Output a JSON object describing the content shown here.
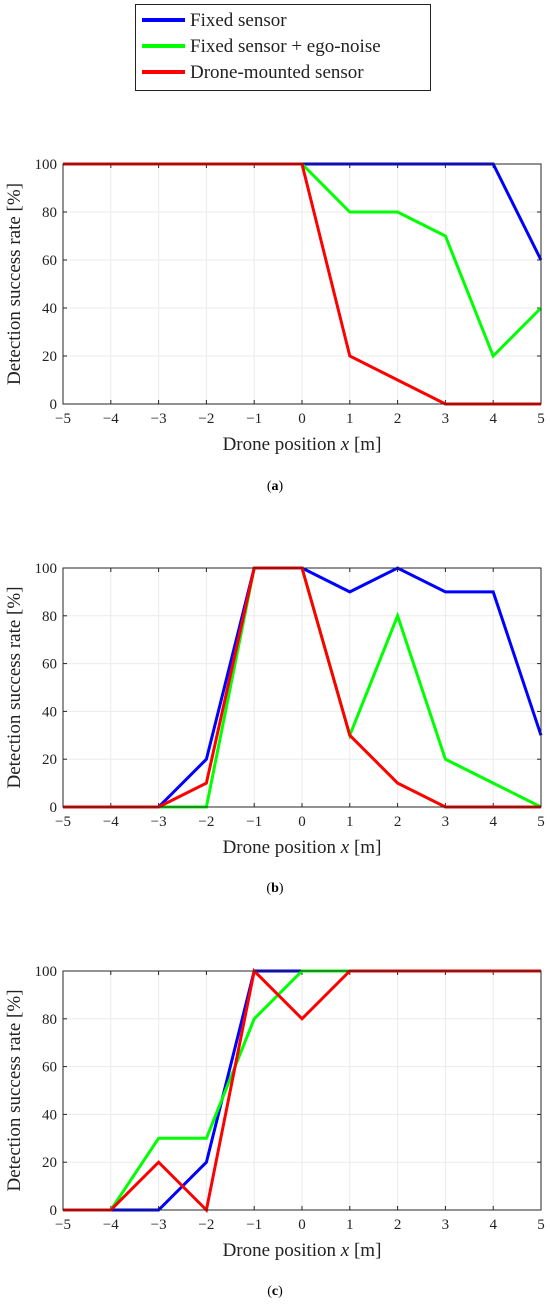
{
  "legend": {
    "entries": [
      {
        "label": "Fixed sensor",
        "color": "#0000ff"
      },
      {
        "label": "Fixed sensor + ego-noise",
        "color": "#00ff00"
      },
      {
        "label": "Drone-mounted sensor",
        "color": "#ff0000"
      }
    ]
  },
  "chart_data": [
    {
      "type": "line",
      "caption": "a",
      "xlabel": "Drone position x [m]",
      "ylabel": "Detection success rate [%]",
      "xlim": [
        -5,
        5
      ],
      "ylim": [
        0,
        100
      ],
      "xticks": [
        -5,
        -4,
        -3,
        -2,
        -1,
        0,
        1,
        2,
        3,
        4,
        5
      ],
      "yticks": [
        0,
        20,
        40,
        60,
        80,
        100
      ],
      "grid": true,
      "series": [
        {
          "name": "Fixed sensor",
          "color": "#0000ff",
          "x": [
            -5,
            -4,
            -3,
            -2,
            -1,
            0,
            1,
            2,
            3,
            4,
            5
          ],
          "y": [
            100,
            100,
            100,
            100,
            100,
            100,
            100,
            100,
            100,
            100,
            60
          ]
        },
        {
          "name": "Fixed sensor + ego-noise",
          "color": "#00ff00",
          "x": [
            -5,
            -4,
            -3,
            -2,
            -1,
            0,
            1,
            2,
            3,
            4,
            5
          ],
          "y": [
            100,
            100,
            100,
            100,
            100,
            100,
            80,
            80,
            70,
            20,
            40
          ]
        },
        {
          "name": "Drone-mounted sensor",
          "color": "#ff0000",
          "x": [
            -5,
            -4,
            -3,
            -2,
            -1,
            0,
            1,
            2,
            3,
            4,
            5
          ],
          "y": [
            100,
            100,
            100,
            100,
            100,
            100,
            20,
            10,
            0,
            0,
            0
          ]
        }
      ]
    },
    {
      "type": "line",
      "caption": "b",
      "xlabel": "Drone position x [m]",
      "ylabel": "Detection success rate [%]",
      "xlim": [
        -5,
        5
      ],
      "ylim": [
        0,
        100
      ],
      "xticks": [
        -5,
        -4,
        -3,
        -2,
        -1,
        0,
        1,
        2,
        3,
        4,
        5
      ],
      "yticks": [
        0,
        20,
        40,
        60,
        80,
        100
      ],
      "grid": true,
      "series": [
        {
          "name": "Fixed sensor",
          "color": "#0000ff",
          "x": [
            -5,
            -4,
            -3,
            -2,
            -1,
            0,
            1,
            2,
            3,
            4,
            5
          ],
          "y": [
            0,
            0,
            0,
            20,
            100,
            100,
            90,
            100,
            90,
            90,
            30
          ]
        },
        {
          "name": "Fixed sensor + ego-noise",
          "color": "#00ff00",
          "x": [
            -5,
            -4,
            -3,
            -2,
            -1,
            0,
            1,
            2,
            3,
            4,
            5
          ],
          "y": [
            0,
            0,
            0,
            0,
            100,
            100,
            30,
            80,
            20,
            10,
            0
          ]
        },
        {
          "name": "Drone-mounted sensor",
          "color": "#ff0000",
          "x": [
            -5,
            -4,
            -3,
            -2,
            -1,
            0,
            1,
            2,
            3,
            4,
            5
          ],
          "y": [
            0,
            0,
            0,
            10,
            100,
            100,
            30,
            10,
            0,
            0,
            0
          ]
        }
      ]
    },
    {
      "type": "line",
      "caption": "c",
      "xlabel": "Drone position x [m]",
      "ylabel": "Detection success rate [%]",
      "xlim": [
        -5,
        5
      ],
      "ylim": [
        0,
        100
      ],
      "xticks": [
        -5,
        -4,
        -3,
        -2,
        -1,
        0,
        1,
        2,
        3,
        4,
        5
      ],
      "yticks": [
        0,
        20,
        40,
        60,
        80,
        100
      ],
      "grid": true,
      "series": [
        {
          "name": "Fixed sensor",
          "color": "#0000ff",
          "x": [
            -5,
            -4,
            -3,
            -2,
            -1,
            0,
            1,
            2,
            3,
            4,
            5
          ],
          "y": [
            0,
            0,
            0,
            20,
            100,
            100,
            100,
            100,
            100,
            100,
            100
          ]
        },
        {
          "name": "Fixed sensor + ego-noise",
          "color": "#00ff00",
          "x": [
            -5,
            -4,
            -3,
            -2,
            -1,
            0,
            1,
            2,
            3,
            4,
            5
          ],
          "y": [
            0,
            0,
            30,
            30,
            80,
            100,
            100,
            100,
            100,
            100,
            100
          ]
        },
        {
          "name": "Drone-mounted sensor",
          "color": "#ff0000",
          "x": [
            -5,
            -4,
            -3,
            -2,
            -1,
            0,
            1,
            2,
            3,
            4,
            5
          ],
          "y": [
            0,
            0,
            20,
            0,
            100,
            80,
            100,
            100,
            100,
            100,
            100
          ]
        }
      ]
    }
  ]
}
